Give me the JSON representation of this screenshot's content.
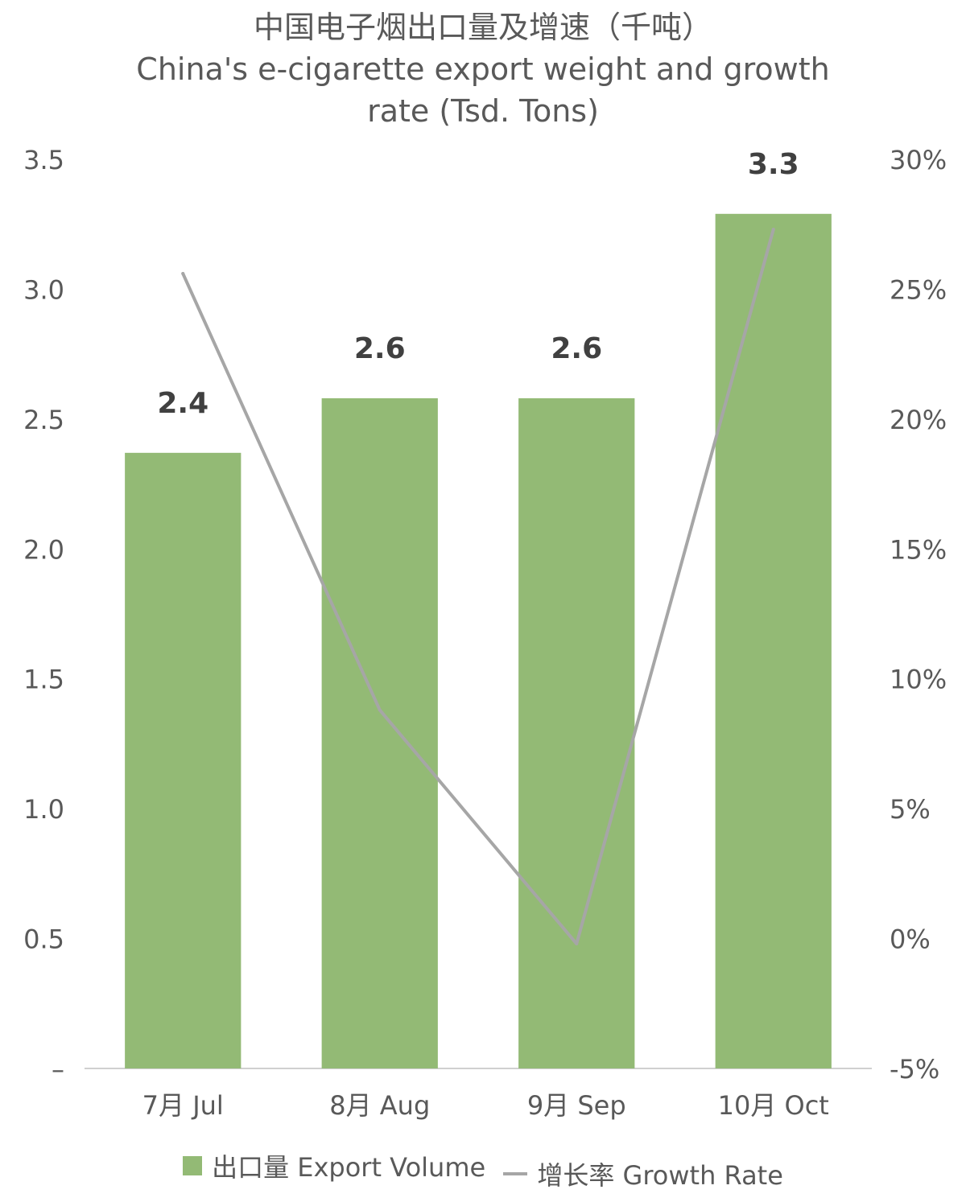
{
  "title": {
    "line1": "中国电子烟出口量及增速（千吨）",
    "line2": "China's e-cigarette export weight and growth",
    "line3": "rate (Tsd. Tons)"
  },
  "colors": {
    "bar": "#93BA75",
    "line": "#A6A6A6",
    "axis": "#D0D0D0"
  },
  "legend": {
    "bar_label": "出口量 Export Volume",
    "line_label": "增长率 Growth Rate"
  },
  "chart_data": {
    "type": "bar",
    "categories": [
      "7月 Jul",
      "8月 Aug",
      "9月 Sep",
      "10月 Oct"
    ],
    "series": [
      {
        "name": "出口量 Export Volume",
        "type": "bar",
        "axis": "left",
        "values": [
          2.37,
          2.58,
          2.58,
          3.29
        ],
        "labels": [
          "2.4",
          "2.6",
          "2.6",
          "3.3"
        ]
      },
      {
        "name": "增长率 Growth Rate",
        "type": "line",
        "axis": "right",
        "values": [
          25.6,
          8.8,
          -0.2,
          27.3
        ]
      }
    ],
    "left_axis": {
      "min": 0,
      "max": 3.5,
      "ticks": [
        "–",
        "0.5",
        "1.0",
        "1.5",
        "2.0",
        "2.5",
        "3.0",
        "3.5"
      ]
    },
    "right_axis": {
      "min": -5,
      "max": 30,
      "ticks": [
        "-5%",
        "0%",
        "5%",
        "10%",
        "15%",
        "20%",
        "25%",
        "30%"
      ]
    },
    "grid": false,
    "legend_position": "bottom"
  }
}
